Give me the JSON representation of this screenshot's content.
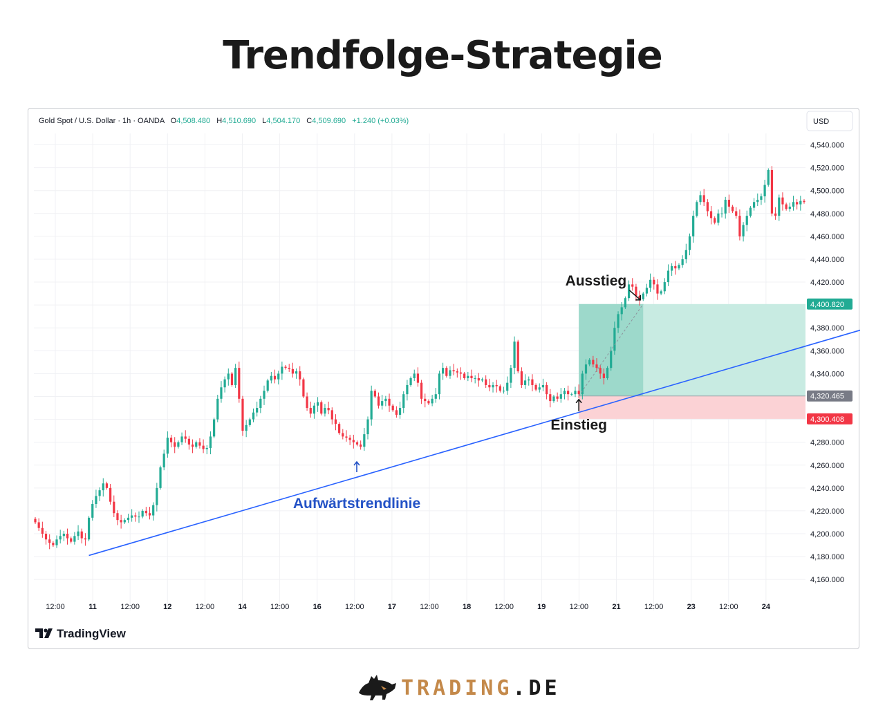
{
  "title": "Trendfolge-Strategie",
  "header": {
    "symbol": "Gold Spot / U.S. Dollar · 1h · OANDA",
    "o_label": "O",
    "o_value": "4,508.480",
    "h_label": "H",
    "h_value": "4,510.690",
    "l_label": "L",
    "l_value": "4,504.170",
    "c_label": "C",
    "c_value": "4,509.690",
    "change": "+1.240 (+0.03%)",
    "currency": "USD"
  },
  "tradingview_logo": "TradingView",
  "brand": {
    "part1": "TRADING",
    "part2": ".DE"
  },
  "colors": {
    "up": "#22ab94",
    "down": "#f23645",
    "trendline": "#2962ff",
    "profit_zone": "#c8ebe2",
    "loss_zone": "#fbd2d5",
    "annotation_blue": "#2352c6"
  },
  "chart_data": {
    "type": "candlestick",
    "ylim": [
      4145,
      4550
    ],
    "y_ticks": [
      4160,
      4180,
      4200,
      4220,
      4240,
      4260,
      4280,
      4300,
      4320,
      4340,
      4360,
      4380,
      4400,
      4420,
      4440,
      4460,
      4480,
      4500,
      4520,
      4540
    ],
    "y_tick_labels": [
      "4,160.000",
      "4,180.000",
      "4,200.000",
      "4,220.000",
      "4,240.000",
      "4,260.000",
      "4,280.000",
      "4,300.000",
      "4,320.000",
      "4,340.000",
      "4,360.000",
      "4,380.000",
      "4,400.000",
      "4,420.000",
      "4,440.000",
      "4,460.000",
      "4,480.000",
      "4,500.000",
      "4,520.000",
      "4,540.000"
    ],
    "x_ticks": [
      {
        "label": "12:00",
        "bold": false
      },
      {
        "label": "11",
        "bold": true
      },
      {
        "label": "12:00",
        "bold": false
      },
      {
        "label": "12",
        "bold": true
      },
      {
        "label": "12:00",
        "bold": false
      },
      {
        "label": "14",
        "bold": true
      },
      {
        "label": "12:00",
        "bold": false
      },
      {
        "label": "16",
        "bold": true
      },
      {
        "label": "12:00",
        "bold": false
      },
      {
        "label": "17",
        "bold": true
      },
      {
        "label": "12:00",
        "bold": false
      },
      {
        "label": "18",
        "bold": true
      },
      {
        "label": "12:00",
        "bold": false
      },
      {
        "label": "19",
        "bold": true
      },
      {
        "label": "12:00",
        "bold": false
      },
      {
        "label": "21",
        "bold": true
      },
      {
        "label": "12:00",
        "bold": false
      },
      {
        "label": "23",
        "bold": true
      },
      {
        "label": "12:00",
        "bold": false
      },
      {
        "label": "24",
        "bold": true
      }
    ],
    "candles_close": [
      4210,
      4205,
      4200,
      4195,
      4192,
      4190,
      4195,
      4198,
      4200,
      4196,
      4193,
      4198,
      4202,
      4196,
      4195,
      4214,
      4226,
      4233,
      4238,
      4244,
      4240,
      4228,
      4218,
      4212,
      4210,
      4212,
      4214,
      4216,
      4215,
      4215,
      4220,
      4218,
      4216,
      4225,
      4240,
      4258,
      4270,
      4284,
      4280,
      4276,
      4280,
      4285,
      4283,
      4278,
      4276,
      4280,
      4277,
      4274,
      4275,
      4285,
      4300,
      4318,
      4328,
      4335,
      4340,
      4330,
      4345,
      4318,
      4290,
      4295,
      4300,
      4306,
      4310,
      4318,
      4325,
      4334,
      4338,
      4335,
      4340,
      4346,
      4345,
      4344,
      4340,
      4342,
      4335,
      4320,
      4310,
      4305,
      4312,
      4315,
      4305,
      4310,
      4308,
      4300,
      4296,
      4288,
      4285,
      4284,
      4282,
      4280,
      4278,
      4276,
      4287,
      4300,
      4325,
      4320,
      4312,
      4316,
      4318,
      4312,
      4308,
      4304,
      4310,
      4322,
      4330,
      4336,
      4340,
      4332,
      4318,
      4316,
      4314,
      4318,
      4322,
      4340,
      4345,
      4338,
      4343,
      4342,
      4341,
      4340,
      4336,
      4338,
      4336,
      4336,
      4334,
      4335,
      4330,
      4328,
      4330,
      4329,
      4325,
      4325,
      4332,
      4345,
      4368,
      4342,
      4330,
      4334,
      4335,
      4330,
      4326,
      4328,
      4330,
      4322,
      4316,
      4320,
      4318,
      4322,
      4325,
      4322,
      4322,
      4325,
      4322,
      4340,
      4348,
      4352,
      4348,
      4345,
      4340,
      4336,
      4345,
      4360,
      4380,
      4392,
      4398,
      4406,
      4418,
      4416,
      4408,
      4405,
      4410,
      4415,
      4422,
      4418,
      4410,
      4412,
      4420,
      4430,
      4434,
      4432,
      4435,
      4440,
      4448,
      4460,
      4478,
      4490,
      4496,
      4490,
      4482,
      4476,
      4472,
      4480,
      4480,
      4492,
      4486,
      4482,
      4478,
      4460,
      4470,
      4478,
      4485,
      4490,
      4492,
      4495,
      4505,
      4518,
      4480,
      4478,
      4494,
      4488,
      4484,
      4486,
      4490,
      4488,
      4491,
      4490
    ],
    "trendline": {
      "start_index": 15,
      "start_value": 4181,
      "end_index": 234,
      "end_value": 4381,
      "label": "Aufwärtstrendlinie"
    },
    "entry": {
      "index": 152,
      "value": 4320.465,
      "label": "Einstieg",
      "price_label": "4,320.465"
    },
    "exit": {
      "index": 170,
      "value": 4400.82,
      "label": "Ausstieg",
      "price_label": "4,400.820"
    },
    "stop": {
      "value": 4300.408,
      "price_label": "4,300.408"
    },
    "profit_zone_active_end_index": 170
  }
}
